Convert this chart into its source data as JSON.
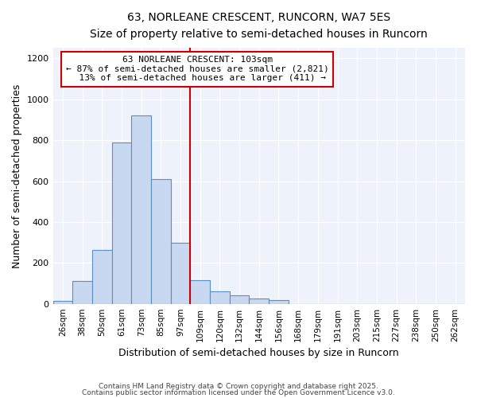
{
  "title": "63, NORLEANE CRESCENT, RUNCORN, WA7 5ES",
  "subtitle": "Size of property relative to semi-detached houses in Runcorn",
  "xlabel": "Distribution of semi-detached houses by size in Runcorn",
  "ylabel": "Number of semi-detached properties",
  "bar_labels": [
    "26sqm",
    "38sqm",
    "50sqm",
    "61sqm",
    "73sqm",
    "85sqm",
    "97sqm",
    "109sqm",
    "120sqm",
    "132sqm",
    "144sqm",
    "156sqm",
    "168sqm",
    "179sqm",
    "191sqm",
    "203sqm",
    "215sqm",
    "227sqm",
    "238sqm",
    "250sqm",
    "262sqm"
  ],
  "bar_values": [
    15,
    110,
    265,
    790,
    920,
    610,
    300,
    115,
    60,
    40,
    25,
    20,
    0,
    0,
    0,
    0,
    0,
    0,
    0,
    0,
    0
  ],
  "bar_color": "#c8d8f0",
  "bar_edge_color": "#5b8ec4",
  "annotation_text_line1": "63 NORLEANE CRESCENT: 103sqm",
  "annotation_text_line2": "← 87% of semi-detached houses are smaller (2,821)",
  "annotation_text_line3": "  13% of semi-detached houses are larger (411) →",
  "line_color": "#cc0000",
  "annotation_box_color": "#cc0000",
  "ylim": [
    0,
    1250
  ],
  "yticks": [
    0,
    200,
    400,
    600,
    800,
    1000,
    1200
  ],
  "footer1": "Contains HM Land Registry data © Crown copyright and database right 2025.",
  "footer2": "Contains public sector information licensed under the Open Government Licence v3.0.",
  "bg_color": "#ffffff",
  "plot_bg_color": "#eef2fb"
}
